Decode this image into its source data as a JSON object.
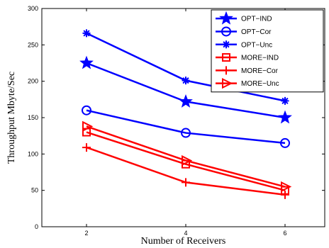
{
  "chart_data": {
    "type": "line",
    "xlabel": "Number of Receivers",
    "ylabel": "Throughput Mbyte/Sec",
    "xlim": [
      1.1,
      6.8
    ],
    "ylim": [
      0,
      300
    ],
    "xticks": [
      2,
      4,
      6
    ],
    "yticks": [
      0,
      50,
      100,
      150,
      200,
      250,
      300
    ],
    "grid": false,
    "legend_position": "top-right",
    "x": [
      2,
      4,
      6
    ],
    "series": [
      {
        "name": "OPT−IND",
        "values": [
          225,
          172,
          150
        ],
        "color": "#0000ff",
        "marker": "star"
      },
      {
        "name": "OPT−Cor",
        "values": [
          160,
          129,
          115
        ],
        "color": "#0000ff",
        "marker": "circle"
      },
      {
        "name": "OPT−Unc",
        "values": [
          266,
          201,
          173
        ],
        "color": "#0000ff",
        "marker": "asterisk"
      },
      {
        "name": "MORE−IND",
        "values": [
          130,
          86,
          50
        ],
        "color": "#ff0000",
        "marker": "square"
      },
      {
        "name": "MORE−Cor",
        "values": [
          109,
          61,
          44
        ],
        "color": "#ff0000",
        "marker": "plus"
      },
      {
        "name": "MORE−Unc",
        "values": [
          138,
          91,
          55
        ],
        "color": "#ff0000",
        "marker": "triangle-right"
      }
    ]
  }
}
